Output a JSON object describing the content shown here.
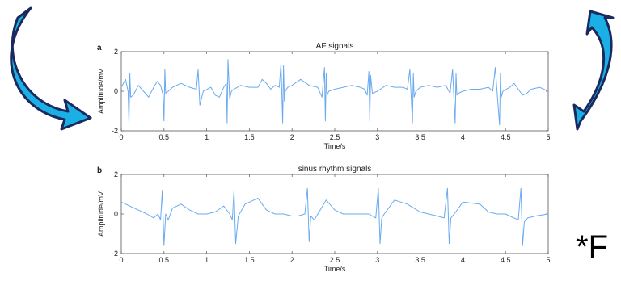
{
  "footnote": "*F",
  "chart_data": [
    {
      "type": "line",
      "panel_label": "a",
      "title": "AF signals",
      "xlabel": "Time/s",
      "ylabel": "Amplitude/mV",
      "xlim": [
        0,
        5
      ],
      "ylim": [
        -2,
        2
      ],
      "xticks": [
        "0",
        "0.5",
        "1",
        "1.5",
        "2",
        "2.5",
        "3",
        "3.5",
        "4",
        "4.5",
        "5"
      ],
      "yticks": [
        "-2",
        "0",
        "2"
      ],
      "line_color": "#6aaaf0",
      "series": [
        {
          "values": {
            "x": [
              0,
              0.05,
              0.08,
              0.09,
              0.1,
              0.11,
              0.14,
              0.2,
              0.26,
              0.32,
              0.38,
              0.42,
              0.46,
              0.49,
              0.5,
              0.51,
              0.52,
              0.55,
              0.6,
              0.7,
              0.8,
              0.88,
              0.9,
              0.92,
              0.96,
              1.05,
              1.1,
              1.15,
              1.2,
              1.23,
              1.24,
              1.25,
              1.27,
              1.29,
              1.32,
              1.4,
              1.5,
              1.6,
              1.65,
              1.7,
              1.75,
              1.8,
              1.85,
              1.87,
              1.89,
              1.9,
              1.91,
              1.92,
              1.95,
              2.0,
              2.1,
              2.2,
              2.3,
              2.35,
              2.38,
              2.39,
              2.4,
              2.41,
              2.43,
              2.5,
              2.6,
              2.7,
              2.8,
              2.85,
              2.88,
              2.9,
              2.91,
              2.92,
              2.94,
              3.0,
              3.1,
              3.2,
              3.3,
              3.35,
              3.38,
              3.41,
              3.42,
              3.43,
              3.45,
              3.5,
              3.6,
              3.7,
              3.8,
              3.85,
              3.88,
              3.91,
              3.92,
              3.93,
              3.95,
              4.0,
              4.1,
              4.2,
              4.3,
              4.35,
              4.38,
              4.43,
              4.44,
              4.45,
              4.47,
              4.55,
              4.6,
              4.65,
              4.7,
              4.75,
              4.8,
              4.9,
              5.0
            ],
            "y": [
              0.2,
              0.6,
              0.0,
              -1.6,
              0.9,
              -0.3,
              -0.2,
              0.3,
              0.0,
              -0.3,
              0.2,
              0.5,
              0.3,
              -0.2,
              -1.5,
              1.1,
              -0.1,
              0.0,
              0.2,
              0.4,
              0.2,
              0.1,
              1.1,
              -0.7,
              0.0,
              0.2,
              -0.2,
              -0.3,
              0.2,
              0.4,
              -1.6,
              1.6,
              -0.4,
              0.0,
              0.1,
              0.3,
              0.2,
              0.2,
              0.6,
              0.4,
              0.1,
              0.3,
              0.2,
              1.4,
              -1.6,
              1.3,
              -0.5,
              0.0,
              0.2,
              0.3,
              0.6,
              0.3,
              0.2,
              -0.3,
              1.2,
              -1.5,
              0.9,
              -0.2,
              0.0,
              0.1,
              0.2,
              0.3,
              0.2,
              0.1,
              -0.2,
              1.0,
              -1.5,
              0.8,
              -0.1,
              0.0,
              0.3,
              0.2,
              0.2,
              0.1,
              1.1,
              -1.6,
              0.9,
              -0.3,
              0.0,
              0.2,
              0.3,
              0.2,
              0.3,
              -0.1,
              1.1,
              -1.6,
              0.9,
              -0.2,
              -0.1,
              0.0,
              0.1,
              0.1,
              0.2,
              0.0,
              1.2,
              -1.7,
              0.9,
              -0.3,
              0.0,
              0.2,
              0.4,
              0.1,
              -0.2,
              -0.1,
              0.1,
              0.2,
              0.0
            ]
          }
        }
      ]
    },
    {
      "type": "line",
      "panel_label": "b",
      "title": "sinus rhythm signals",
      "xlabel": "Time/s",
      "ylabel": "Amplitude/mV",
      "xlim": [
        0,
        5
      ],
      "ylim": [
        -2,
        2
      ],
      "xticks": [
        "0",
        "0.5",
        "1",
        "1.5",
        "2",
        "2.5",
        "3",
        "3.5",
        "4",
        "4.5",
        "5"
      ],
      "yticks": [
        "-2",
        "0",
        "2"
      ],
      "line_color": "#6aaaf0",
      "series": [
        {
          "values": {
            "x": [
              0,
              0.1,
              0.2,
              0.3,
              0.38,
              0.43,
              0.46,
              0.48,
              0.5,
              0.52,
              0.55,
              0.6,
              0.7,
              0.8,
              0.9,
              1.0,
              1.1,
              1.2,
              1.27,
              1.3,
              1.32,
              1.34,
              1.37,
              1.45,
              1.6,
              1.7,
              1.8,
              1.9,
              2.0,
              2.07,
              2.15,
              2.18,
              2.2,
              2.22,
              2.26,
              2.4,
              2.5,
              2.6,
              2.7,
              2.8,
              2.9,
              2.98,
              3.01,
              3.03,
              3.05,
              3.08,
              3.2,
              3.35,
              3.5,
              3.6,
              3.7,
              3.78,
              3.82,
              3.84,
              3.86,
              3.9,
              4.0,
              4.2,
              4.3,
              4.4,
              4.5,
              4.55,
              4.65,
              4.68,
              4.7,
              4.72,
              4.76,
              4.85,
              5.0
            ],
            "y": [
              0.6,
              0.4,
              0.2,
              0.0,
              -0.2,
              0.0,
              -0.3,
              1.2,
              -1.6,
              0.0,
              -0.3,
              0.3,
              0.5,
              0.2,
              0.0,
              0.0,
              0.1,
              0.4,
              0.0,
              -0.3,
              1.2,
              -1.5,
              -0.1,
              0.5,
              0.8,
              0.2,
              0.0,
              0.0,
              -0.1,
              -0.1,
              0.0,
              1.3,
              -1.4,
              -0.1,
              -0.3,
              0.7,
              0.2,
              0.0,
              0.0,
              0.0,
              0.0,
              -0.2,
              1.3,
              -1.5,
              -0.2,
              0.0,
              0.7,
              0.5,
              0.1,
              0.0,
              -0.1,
              -0.2,
              1.3,
              -1.5,
              -0.2,
              0.0,
              0.6,
              0.5,
              0.1,
              0.0,
              0.0,
              -0.1,
              -0.3,
              1.3,
              -1.6,
              -0.4,
              -0.2,
              -0.1,
              0.0
            ]
          }
        }
      ]
    }
  ]
}
